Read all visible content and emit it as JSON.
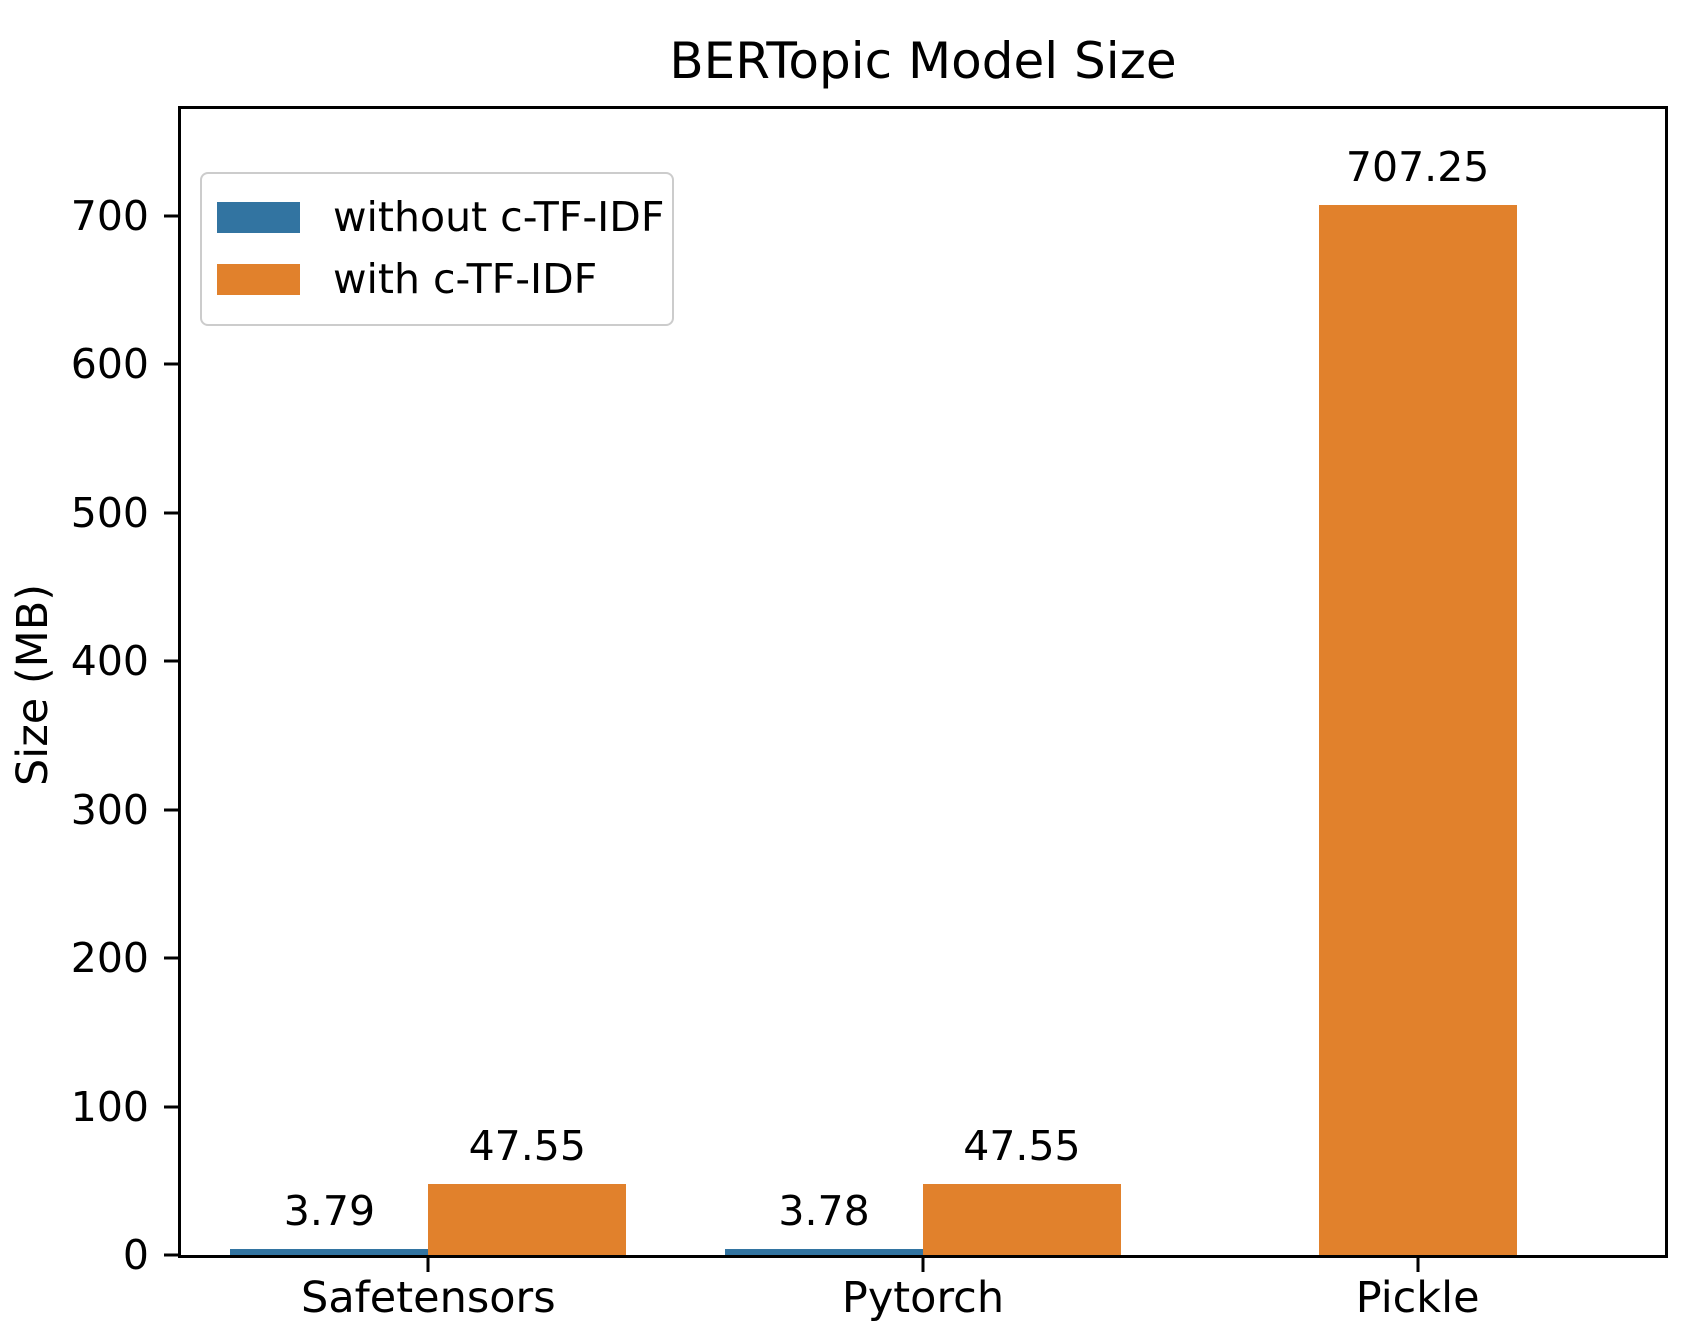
{
  "title": "BERTopic Model Size",
  "y_axis_label": "Size (MB)",
  "legend": {
    "items": [
      {
        "label": "without c-TF-IDF",
        "color": "#3274a1"
      },
      {
        "label": "with c-TF-IDF",
        "color": "#e1812c"
      }
    ]
  },
  "chart_data": {
    "type": "bar",
    "title": "BERTopic Model Size",
    "xlabel": "",
    "ylabel": "Size (MB)",
    "categories": [
      "Safetensors",
      "Pytorch",
      "Pickle"
    ],
    "series": [
      {
        "name": "without c-TF-IDF",
        "color": "#3274a1",
        "values": [
          3.79,
          3.78,
          null
        ]
      },
      {
        "name": "with c-TF-IDF",
        "color": "#e1812c",
        "values": [
          47.55,
          47.55,
          707.25
        ]
      }
    ],
    "bars": [
      {
        "cat": 0,
        "series": 0,
        "value": 3.79,
        "label": "3.79",
        "offset": -0.2
      },
      {
        "cat": 0,
        "series": 1,
        "value": 47.55,
        "label": "47.55",
        "offset": 0.2
      },
      {
        "cat": 1,
        "series": 0,
        "value": 3.78,
        "label": "3.78",
        "offset": -0.2
      },
      {
        "cat": 1,
        "series": 1,
        "value": 47.55,
        "label": "47.55",
        "offset": 0.2
      },
      {
        "cat": 2,
        "series": 1,
        "value": 707.25,
        "label": "707.25",
        "offset": 0
      }
    ],
    "bar_width_units": 0.4,
    "ylim": [
      0,
      772
    ],
    "yticks": [
      0,
      100,
      200,
      300,
      400,
      500,
      600,
      700
    ],
    "grid": false,
    "legend_position": "upper left"
  }
}
